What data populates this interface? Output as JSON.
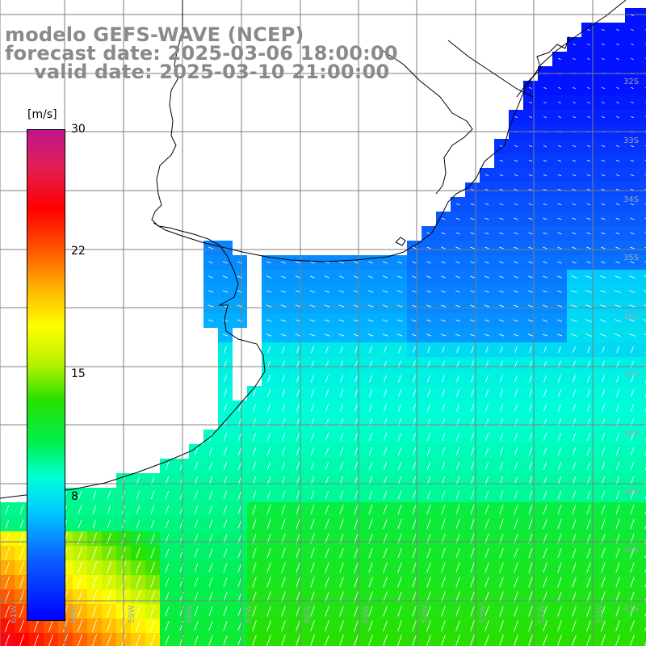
{
  "title": {
    "model": "modelo GEFS-WAVE (NCEP)",
    "forecast_date": "forecast date: 2025-03-06 18:00:00",
    "valid_date": "valid date: 2025-03-10 21:00:00"
  },
  "colorbar": {
    "unit": "[m/s]",
    "ticks": [
      "30",
      "22",
      "15",
      "8"
    ],
    "min": 0,
    "max": 30,
    "colors": [
      "#0000ff",
      "#0a64ff",
      "#00c8ff",
      "#00ffd8",
      "#00f050",
      "#28e000",
      "#b4f000",
      "#ffff00",
      "#ffb000",
      "#ff5000",
      "#ff0000",
      "#e0205a",
      "#c0148c"
    ]
  },
  "map": {
    "lat_labels": [
      "32S",
      "33S",
      "34S",
      "35S",
      "36S",
      "37S",
      "38S",
      "39S",
      "40S",
      "41S"
    ],
    "lon_labels": [
      "61W",
      "60W",
      "59W",
      "58W",
      "57W",
      "56W",
      "55W",
      "54W",
      "53W",
      "52W",
      "51W"
    ],
    "land_color": "#ffffff",
    "grid_color": "#7f7f7f",
    "coast_color": "#000000",
    "arrow_color": "#ffffff"
  }
}
